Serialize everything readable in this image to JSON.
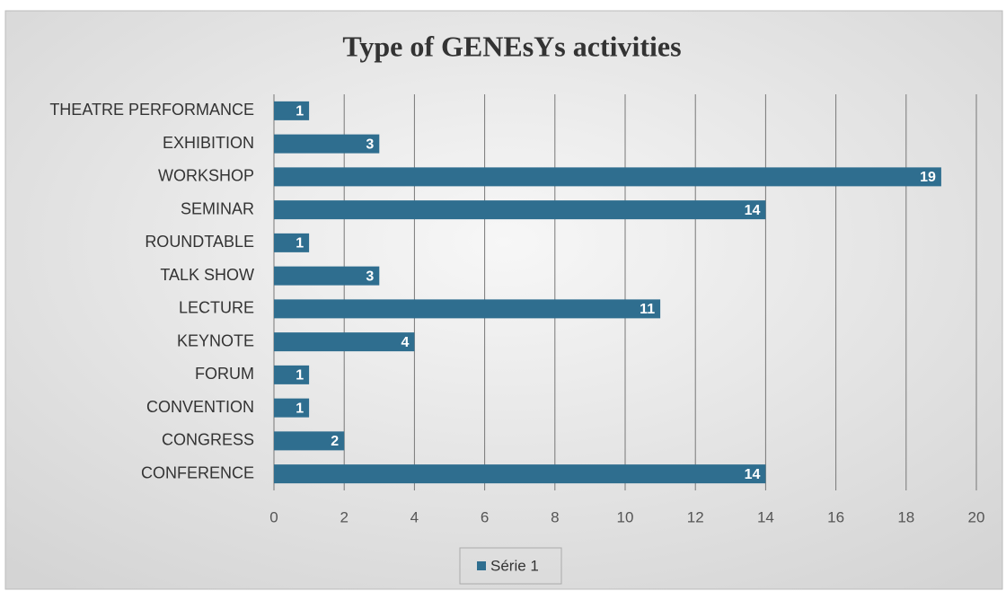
{
  "chart_data": {
    "type": "bar",
    "orientation": "horizontal",
    "title": "Type of GENEsYs activities",
    "categories": [
      "THEATRE PERFORMANCE",
      "EXHIBITION",
      "WORKSHOP",
      "SEMINAR",
      "ROUNDTABLE",
      "TALK SHOW",
      "LECTURE",
      "KEYNOTE",
      "FORUM",
      "CONVENTION",
      "CONGRESS",
      "CONFERENCE"
    ],
    "series": [
      {
        "name": "Série 1",
        "color": "#2f6e8f",
        "values": [
          1,
          3,
          19,
          14,
          1,
          3,
          11,
          4,
          1,
          1,
          2,
          14
        ]
      }
    ],
    "xlim": [
      0,
      20
    ],
    "xticks": [
      0,
      2,
      4,
      6,
      8,
      10,
      12,
      14,
      16,
      18,
      20
    ],
    "grid": true,
    "legend": "bottom"
  }
}
